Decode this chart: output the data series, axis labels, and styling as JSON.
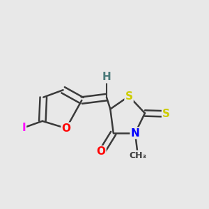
{
  "bg_color": "#e8e8e8",
  "bond_color": "#3a3a3a",
  "bond_width": 1.8,
  "atom_colors": {
    "O": "#ff0000",
    "N": "#0000ff",
    "S": "#cccc00",
    "I": "#ff00ff",
    "H": "#4a7a7a",
    "C": "#3a3a3a"
  }
}
